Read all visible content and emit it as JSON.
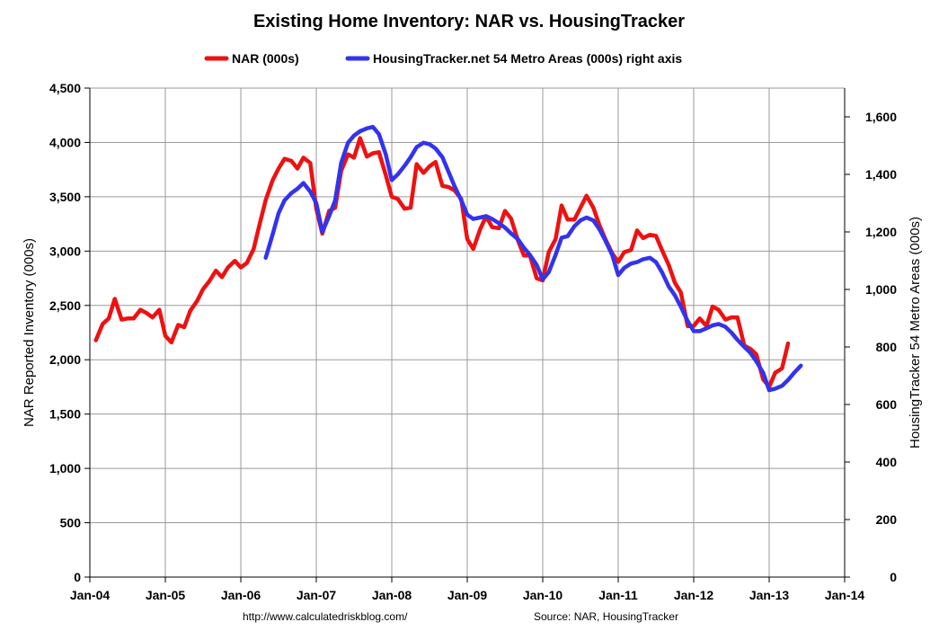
{
  "chart_data": {
    "type": "line",
    "title": "Existing Home Inventory: NAR vs. HousingTracker",
    "ylabel_left": "NAR Reported Inventory (000s)",
    "ylabel_right": "HousingTracker 54 Metro Areas (000s)",
    "xlim": [
      2004.0,
      2014.0
    ],
    "ylim_left": [
      0,
      4500
    ],
    "ylim_right": [
      0,
      1700
    ],
    "left_ticks": [
      "0",
      "500",
      "1,000",
      "1,500",
      "2,000",
      "2,500",
      "3,000",
      "3,500",
      "4,000",
      "4,500"
    ],
    "right_ticks": [
      "0",
      "200",
      "400",
      "600",
      "800",
      "1,000",
      "1,200",
      "1,400",
      "1,600"
    ],
    "x_ticks": [
      "Jan-04",
      "Jan-05",
      "Jan-06",
      "Jan-07",
      "Jan-08",
      "Jan-09",
      "Jan-10",
      "Jan-11",
      "Jan-12",
      "Jan-13",
      "Jan-14"
    ],
    "grid": true,
    "legend_position": "top",
    "footnote_left": "http://www.calculatedriskblog.com/",
    "footnote_right": "Source: NAR, HousingTracker",
    "series": [
      {
        "name": "NAR (000s)",
        "axis": "left",
        "color": "#ee1111",
        "x": [
          2004.08,
          2004.17,
          2004.25,
          2004.33,
          2004.42,
          2004.5,
          2004.58,
          2004.67,
          2004.75,
          2004.83,
          2004.92,
          2005.0,
          2005.08,
          2005.17,
          2005.25,
          2005.33,
          2005.42,
          2005.5,
          2005.58,
          2005.67,
          2005.75,
          2005.83,
          2005.92,
          2006.0,
          2006.08,
          2006.17,
          2006.25,
          2006.33,
          2006.42,
          2006.5,
          2006.58,
          2006.67,
          2006.75,
          2006.83,
          2006.92,
          2007.0,
          2007.08,
          2007.17,
          2007.25,
          2007.33,
          2007.42,
          2007.5,
          2007.58,
          2007.67,
          2007.75,
          2007.83,
          2007.92,
          2008.0,
          2008.08,
          2008.17,
          2008.25,
          2008.33,
          2008.42,
          2008.5,
          2008.58,
          2008.67,
          2008.75,
          2008.83,
          2008.92,
          2009.0,
          2009.08,
          2009.17,
          2009.25,
          2009.33,
          2009.42,
          2009.5,
          2009.58,
          2009.67,
          2009.75,
          2009.83,
          2009.92,
          2010.0,
          2010.08,
          2010.17,
          2010.25,
          2010.33,
          2010.42,
          2010.5,
          2010.58,
          2010.67,
          2010.75,
          2010.83,
          2010.92,
          2011.0,
          2011.08,
          2011.17,
          2011.25,
          2011.33,
          2011.42,
          2011.5,
          2011.58,
          2011.67,
          2011.75,
          2011.83,
          2011.92,
          2012.0,
          2012.08,
          2012.17,
          2012.25,
          2012.33,
          2012.42,
          2012.5,
          2012.58,
          2012.67,
          2012.75,
          2012.83,
          2012.92,
          2013.0,
          2013.08,
          2013.17,
          2013.25
        ],
        "values": [
          2180,
          2330,
          2380,
          2560,
          2370,
          2380,
          2380,
          2460,
          2430,
          2390,
          2460,
          2220,
          2160,
          2320,
          2300,
          2450,
          2540,
          2650,
          2720,
          2820,
          2760,
          2850,
          2910,
          2850,
          2890,
          3020,
          3250,
          3470,
          3650,
          3760,
          3850,
          3830,
          3760,
          3860,
          3810,
          3390,
          3160,
          3370,
          3400,
          3740,
          3890,
          3860,
          4040,
          3870,
          3900,
          3910,
          3700,
          3500,
          3480,
          3390,
          3400,
          3800,
          3720,
          3780,
          3820,
          3600,
          3590,
          3560,
          3480,
          3110,
          3020,
          3200,
          3320,
          3220,
          3210,
          3370,
          3300,
          3100,
          2960,
          2960,
          2750,
          2730,
          2990,
          3110,
          3420,
          3290,
          3290,
          3400,
          3510,
          3400,
          3240,
          3110,
          2980,
          2900,
          2990,
          3010,
          3190,
          3120,
          3150,
          3140,
          3010,
          2870,
          2710,
          2620,
          2310,
          2310,
          2380,
          2310,
          2490,
          2460,
          2370,
          2390,
          2390,
          2130,
          2100,
          2050,
          1820,
          1750,
          1880,
          1920,
          2150
        ]
      },
      {
        "name": "HousingTracker.net 54 Metro Areas (000s) right axis",
        "axis": "right",
        "color": "#3333ee",
        "x": [
          2006.33,
          2006.42,
          2006.5,
          2006.58,
          2006.67,
          2006.75,
          2006.83,
          2006.92,
          2007.0,
          2007.08,
          2007.17,
          2007.25,
          2007.33,
          2007.42,
          2007.5,
          2007.58,
          2007.67,
          2007.75,
          2007.83,
          2007.92,
          2008.0,
          2008.08,
          2008.17,
          2008.25,
          2008.33,
          2008.42,
          2008.5,
          2008.58,
          2008.67,
          2008.75,
          2008.83,
          2008.92,
          2009.0,
          2009.08,
          2009.17,
          2009.25,
          2009.33,
          2009.42,
          2009.5,
          2009.58,
          2009.67,
          2009.75,
          2009.83,
          2009.92,
          2010.0,
          2010.08,
          2010.17,
          2010.25,
          2010.33,
          2010.42,
          2010.5,
          2010.58,
          2010.67,
          2010.75,
          2010.83,
          2010.92,
          2011.0,
          2011.08,
          2011.17,
          2011.25,
          2011.33,
          2011.42,
          2011.5,
          2011.58,
          2011.67,
          2011.75,
          2011.83,
          2011.92,
          2012.0,
          2012.08,
          2012.17,
          2012.25,
          2012.33,
          2012.42,
          2012.5,
          2012.58,
          2012.67,
          2012.75,
          2012.83,
          2012.92,
          2013.0,
          2013.08,
          2013.17,
          2013.25,
          2013.33,
          2013.42
        ],
        "values": [
          1110,
          1190,
          1265,
          1310,
          1335,
          1350,
          1370,
          1340,
          1300,
          1200,
          1255,
          1310,
          1440,
          1510,
          1535,
          1550,
          1560,
          1565,
          1540,
          1470,
          1380,
          1400,
          1430,
          1460,
          1495,
          1510,
          1505,
          1490,
          1460,
          1410,
          1360,
          1310,
          1260,
          1245,
          1250,
          1255,
          1245,
          1230,
          1215,
          1195,
          1175,
          1145,
          1120,
          1085,
          1035,
          1060,
          1120,
          1180,
          1185,
          1220,
          1240,
          1250,
          1240,
          1210,
          1170,
          1120,
          1050,
          1075,
          1090,
          1095,
          1105,
          1110,
          1095,
          1060,
          1010,
          980,
          940,
          890,
          855,
          855,
          865,
          875,
          880,
          870,
          850,
          825,
          800,
          780,
          750,
          710,
          650,
          655,
          665,
          685,
          710,
          735
        ]
      }
    ]
  }
}
